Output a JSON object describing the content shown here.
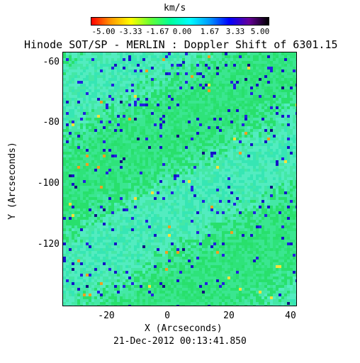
{
  "colorbar": {
    "unit_label": "km/s",
    "tick_labels": [
      "-5.00",
      "-3.33",
      "-1.67",
      "0.00",
      "1.67",
      "3.33",
      "5.00"
    ],
    "range": [
      -5.0,
      5.0
    ],
    "colormap": [
      "#ff0000",
      "#ff9900",
      "#ffff00",
      "#66ff33",
      "#00ff99",
      "#00ffff",
      "#0099ff",
      "#0000ff",
      "#660099",
      "#000000"
    ]
  },
  "plot": {
    "title": "Hinode SOT/SP - MERLIN : Doppler Shift of 6301.15",
    "xlabel": "X (Arcseconds)",
    "ylabel": "Y (Arcseconds)",
    "x_ticks": [
      "-20",
      "0",
      "20",
      "40"
    ],
    "y_ticks": [
      "-60",
      "-80",
      "-100",
      "-120"
    ],
    "xlim": [
      -34,
      42
    ],
    "ylim": [
      -140,
      -58
    ],
    "timestamp": "21-Dec-2012 00:13:41.850",
    "map_colors": {
      "background": "#36e082",
      "dominant": [
        "#2ee37a",
        "#3ae690",
        "#28e06c",
        "#44e8a6",
        "#52ecc0",
        "#36e6b4"
      ],
      "sparse": [
        "#1414c8",
        "#2222e0",
        "#f0a020",
        "#f6e23a",
        "#101080"
      ]
    }
  }
}
